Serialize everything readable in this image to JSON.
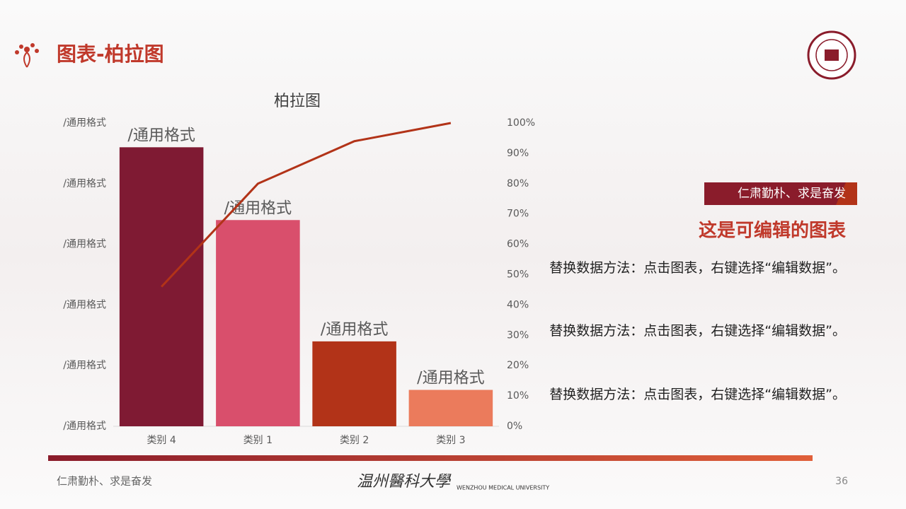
{
  "header": {
    "title": "图表-柏拉图"
  },
  "chart_data": {
    "type": "bar",
    "title": "柏拉图",
    "categories": [
      "类别 4",
      "类别 1",
      "类别 2",
      "类别 3"
    ],
    "series": [
      {
        "values": [
          4.6,
          3.4,
          1.4,
          0.6
        ],
        "value_labels": [
          "/通用格式",
          "/通用格式",
          "/通用格式",
          "/通用格式"
        ],
        "colors": [
          "#7f1a33",
          "#d94f6c",
          "#b23318",
          "#eb7b5c"
        ]
      },
      {
        "type": "line",
        "axis": "y2",
        "color": "#b23318",
        "values": [
          46,
          80,
          94,
          100
        ]
      }
    ],
    "ylim": [
      0,
      5
    ],
    "yticks": [
      {
        "value": 0,
        "label": "/通用格式"
      },
      {
        "value": 1,
        "label": "/通用格式"
      },
      {
        "value": 2,
        "label": "/通用格式"
      },
      {
        "value": 3,
        "label": "/通用格式"
      },
      {
        "value": 4,
        "label": "/通用格式"
      },
      {
        "value": 5,
        "label": "/通用格式"
      }
    ],
    "y2lim": [
      0,
      100
    ],
    "y2ticks": [
      {
        "value": 0,
        "label": "0%"
      },
      {
        "value": 10,
        "label": "10%"
      },
      {
        "value": 20,
        "label": "20%"
      },
      {
        "value": 30,
        "label": "30%"
      },
      {
        "value": 40,
        "label": "40%"
      },
      {
        "value": 50,
        "label": "50%"
      },
      {
        "value": 60,
        "label": "60%"
      },
      {
        "value": 70,
        "label": "70%"
      },
      {
        "value": 80,
        "label": "80%"
      },
      {
        "value": 90,
        "label": "90%"
      },
      {
        "value": 100,
        "label": "100%"
      }
    ]
  },
  "panel": {
    "tag": "仁肃勤朴、求是奋发",
    "heading": "这是可编辑的图表",
    "paragraphs": [
      "替换数据方法：点击图表，右键选择“编辑数据”。",
      "替换数据方法：点击图表，右键选择“编辑数据”。",
      "替换数据方法：点击图表，右键选择“编辑数据”。"
    ]
  },
  "footer": {
    "motto": "仁肃勤朴、求是奋发",
    "university": "温州醫科大學",
    "university_en": "WENZHOU MEDICAL UNIVERSITY",
    "page": "36"
  }
}
